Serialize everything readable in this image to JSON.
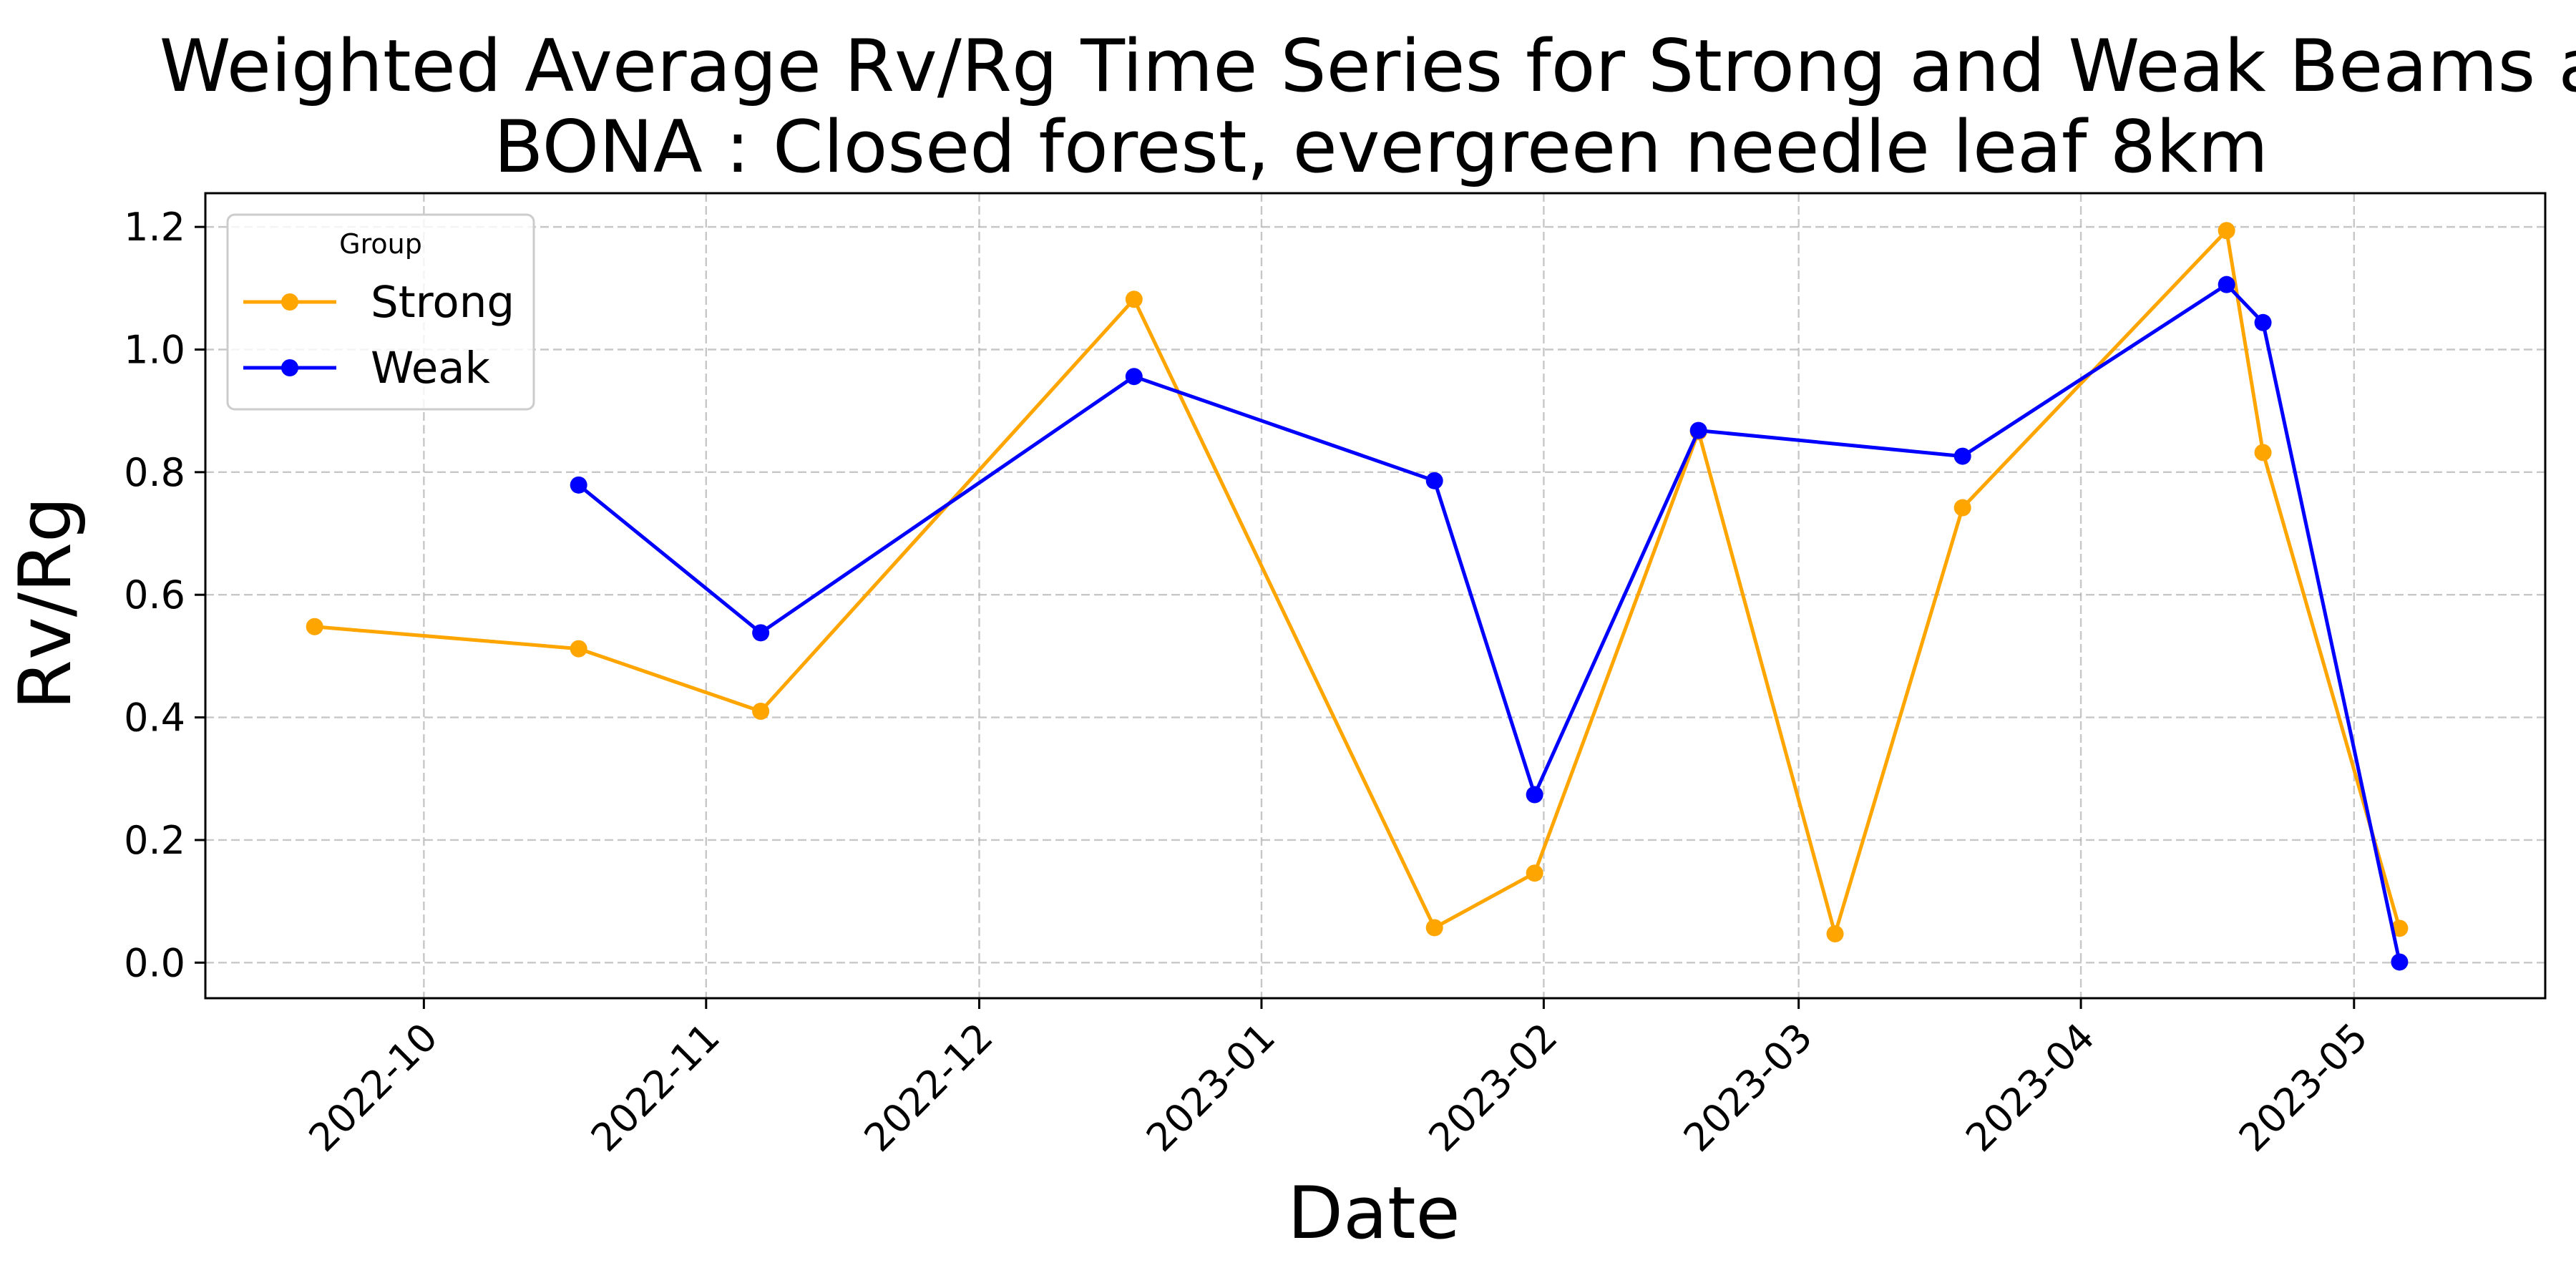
{
  "chart_data": {
    "type": "line",
    "title_lines": [
      "Weighted Average Rv/Rg Time Series for Strong and Weak Beams a",
      "BONA : Closed forest, evergreen needle leaf 8km"
    ],
    "xlabel": "Date",
    "ylabel": "Rv/Rg",
    "xlim": [
      "2022-09-07",
      "2023-05-22"
    ],
    "ylim": [
      -0.058,
      1.255
    ],
    "x_ticks": [
      "2022-10-01",
      "2022-11-01",
      "2022-12-01",
      "2023-01-01",
      "2023-02-01",
      "2023-03-01",
      "2023-04-01",
      "2023-05-01"
    ],
    "x_tick_labels": [
      "2022-10",
      "2022-11",
      "2022-12",
      "2023-01",
      "2023-02",
      "2023-03",
      "2023-04",
      "2023-05"
    ],
    "y_ticks": [
      0.0,
      0.2,
      0.4,
      0.6,
      0.8,
      1.0,
      1.2
    ],
    "y_tick_labels": [
      "0.0",
      "0.2",
      "0.4",
      "0.6",
      "0.8",
      "1.0",
      "1.2"
    ],
    "grid": true,
    "legend": {
      "title": "Group",
      "position": "top-left"
    },
    "series": [
      {
        "name": "Strong",
        "color": "#FFA500",
        "points": [
          {
            "x": "2022-09-19",
            "y": 0.548
          },
          {
            "x": "2022-10-18",
            "y": 0.512
          },
          {
            "x": "2022-11-07",
            "y": 0.41
          },
          {
            "x": "2022-12-18",
            "y": 1.082
          },
          {
            "x": "2023-01-20",
            "y": 0.057
          },
          {
            "x": "2023-01-31",
            "y": 0.146
          },
          {
            "x": "2023-02-18",
            "y": 0.866
          },
          {
            "x": "2023-03-05",
            "y": 0.047
          },
          {
            "x": "2023-03-19",
            "y": 0.742
          },
          {
            "x": "2023-04-17",
            "y": 1.194
          },
          {
            "x": "2023-04-21",
            "y": 0.832
          },
          {
            "x": "2023-05-06",
            "y": 0.056
          }
        ]
      },
      {
        "name": "Weak",
        "color": "#0000FF",
        "points": [
          {
            "x": "2022-10-18",
            "y": 0.779
          },
          {
            "x": "2022-11-07",
            "y": 0.538
          },
          {
            "x": "2022-12-18",
            "y": 0.956
          },
          {
            "x": "2023-01-20",
            "y": 0.786
          },
          {
            "x": "2023-01-31",
            "y": 0.274
          },
          {
            "x": "2023-02-18",
            "y": 0.868
          },
          {
            "x": "2023-03-19",
            "y": 0.826
          },
          {
            "x": "2023-04-17",
            "y": 1.106
          },
          {
            "x": "2023-04-21",
            "y": 1.044
          },
          {
            "x": "2023-05-06",
            "y": 0.001
          }
        ]
      }
    ]
  }
}
